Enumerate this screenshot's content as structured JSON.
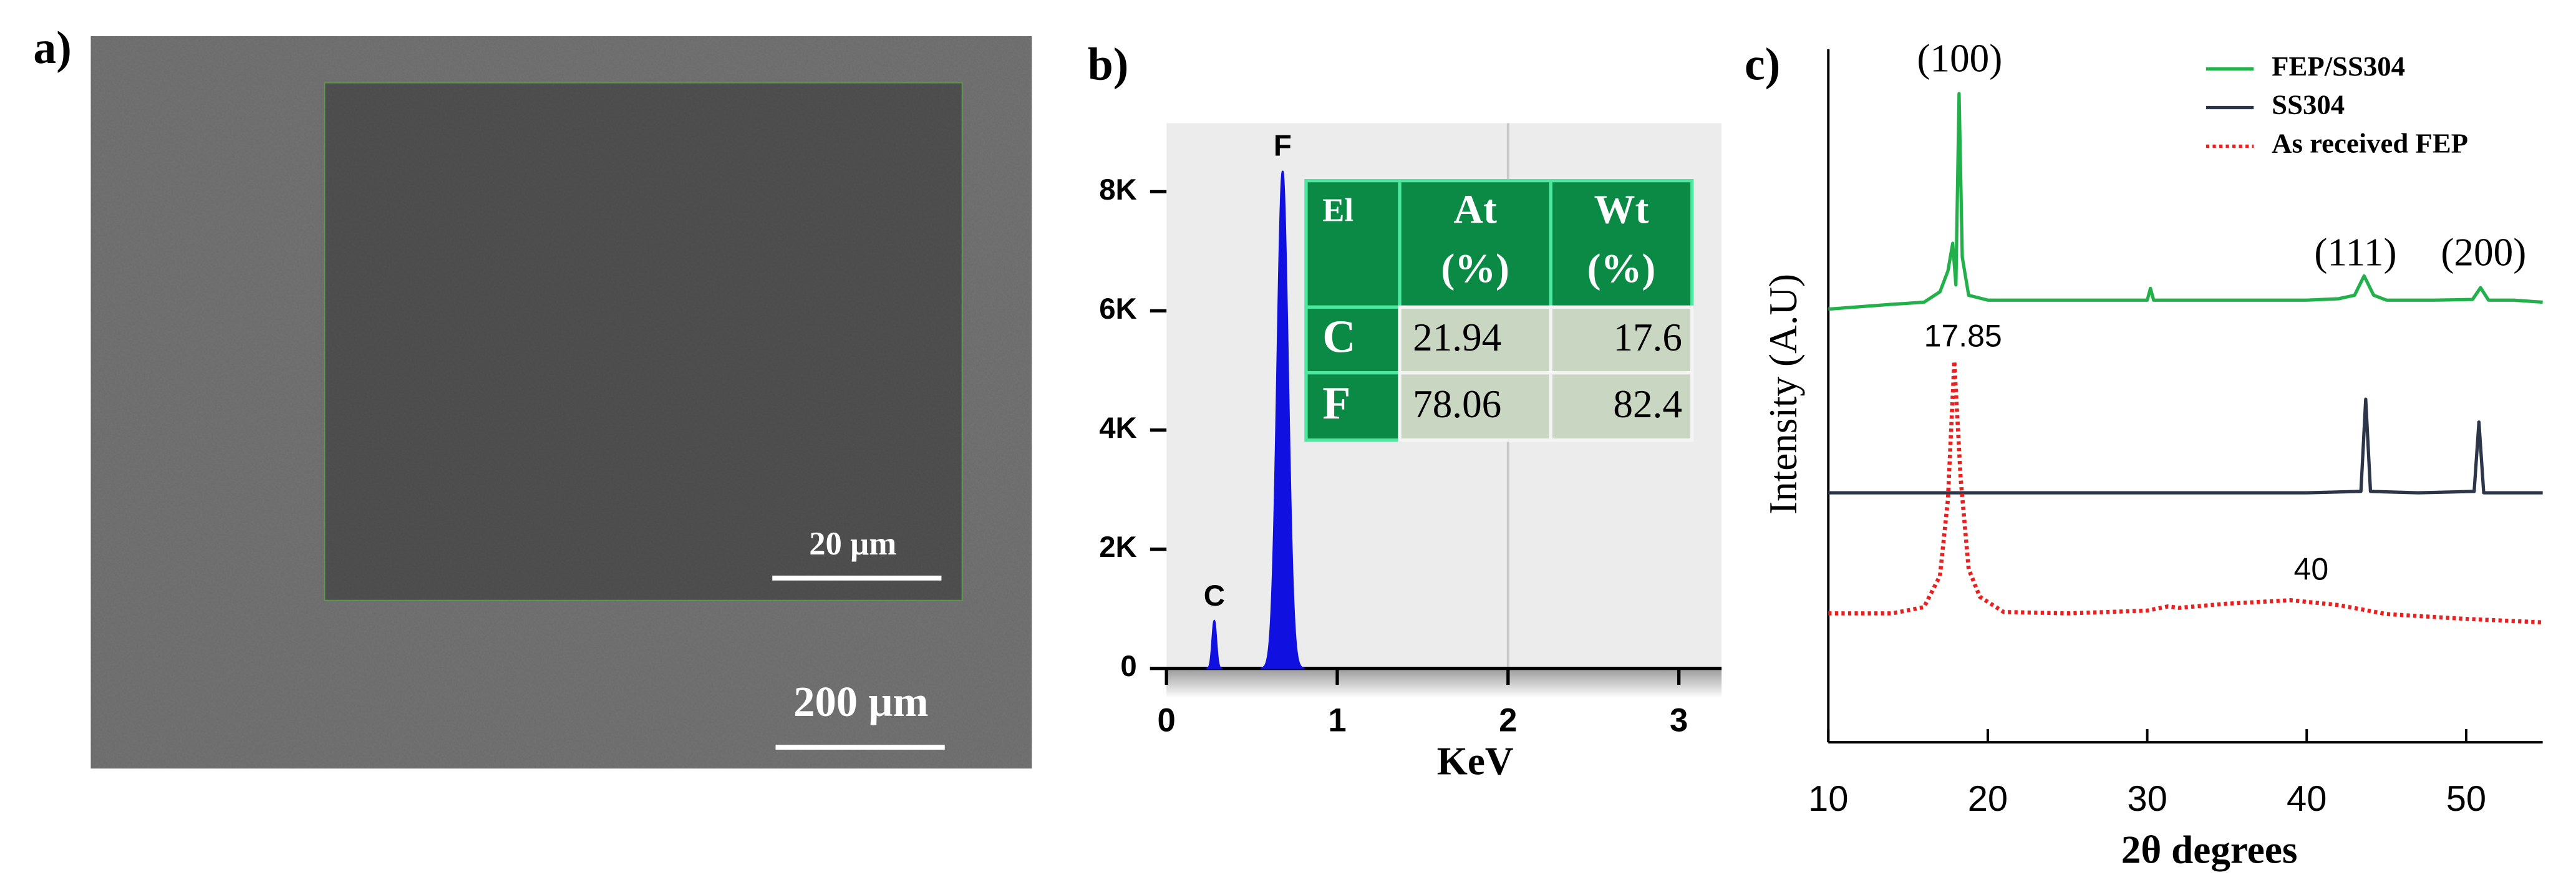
{
  "sem": {
    "label": "a)",
    "inset_scale": "20 µm",
    "scale": "200 µm"
  },
  "chart_data": [
    {
      "type": "spectrum",
      "label": "b)",
      "xlabel": "KeV",
      "xlim": [
        0,
        3.25
      ],
      "xticks": [
        0,
        1,
        2,
        3
      ],
      "ylim": [
        0,
        9150
      ],
      "yticks": [
        0,
        {
          "value": 2000,
          "label": "2K"
        },
        {
          "value": 4000,
          "label": "4K"
        },
        {
          "value": 6000,
          "label": "6K"
        },
        {
          "value": 8000,
          "label": "8K"
        }
      ],
      "color": "#1010e0",
      "peaks": [
        {
          "label": "C",
          "energy": 0.28,
          "counts": 800
        },
        {
          "label": "F",
          "energy": 0.68,
          "counts": 8350
        }
      ],
      "table": {
        "header": [
          [
            "El"
          ],
          [
            "At",
            "(%)"
          ],
          [
            "Wt",
            "(%)"
          ]
        ],
        "rows": [
          [
            "C",
            21.94,
            17.6
          ],
          [
            "F",
            78.06,
            82.4
          ]
        ]
      }
    },
    {
      "type": "line",
      "label": "c)",
      "xlabel": "2θ degrees",
      "ylabel": "Intensity  (A.U)",
      "xlim": [
        10,
        54.8
      ],
      "xticks": [
        10,
        20,
        30,
        40,
        50
      ],
      "ylim": [
        0,
        100
      ],
      "legend": "upper right",
      "series": [
        {
          "name": "FEP/SS304",
          "color": "#22b04a",
          "linestyle": "solid",
          "x": [
            10,
            14,
            16,
            17,
            17.5,
            17.8,
            18.0,
            18.2,
            18.4,
            18.8,
            20,
            25,
            30,
            30.2,
            30.4,
            35,
            40,
            42,
            43,
            43.6,
            44.2,
            45,
            48,
            50.4,
            50.9,
            51.4,
            53,
            54.8
          ],
          "values": [
            62.5,
            63.2,
            63.5,
            65,
            68,
            72,
            66,
            93.6,
            70,
            64.5,
            63.8,
            63.8,
            63.8,
            65.5,
            63.8,
            63.8,
            63.8,
            64,
            64.5,
            67.3,
            64.5,
            63.8,
            63.8,
            63.9,
            65.6,
            63.8,
            63.8,
            63.5
          ]
        },
        {
          "name": "SS304",
          "color": "#2d3648",
          "linestyle": "solid",
          "x": [
            10,
            20,
            30,
            40,
            43.4,
            43.7,
            44.0,
            47,
            50.5,
            50.8,
            51.1,
            54.8
          ],
          "values": [
            36,
            36,
            36,
            36,
            36.2,
            49.5,
            36.2,
            36,
            36.2,
            46.2,
            36,
            36
          ]
        },
        {
          "name": "As received FEP",
          "color": "#e82020",
          "linestyle": "dotted",
          "x": [
            10,
            14,
            16,
            17,
            17.5,
            17.9,
            18.3,
            18.8,
            19.5,
            21,
            25,
            30,
            31.3,
            32,
            35,
            39,
            42,
            45,
            50,
            54.8
          ],
          "values": [
            18.6,
            18.6,
            19.5,
            24,
            35,
            55,
            38,
            25,
            21,
            18.8,
            18.6,
            19,
            19.6,
            19.4,
            20,
            20.5,
            19.8,
            18.5,
            17.8,
            17.3
          ]
        }
      ],
      "annotations": [
        "(100)",
        "(111)",
        "(200)",
        "17.85",
        "40"
      ]
    }
  ]
}
